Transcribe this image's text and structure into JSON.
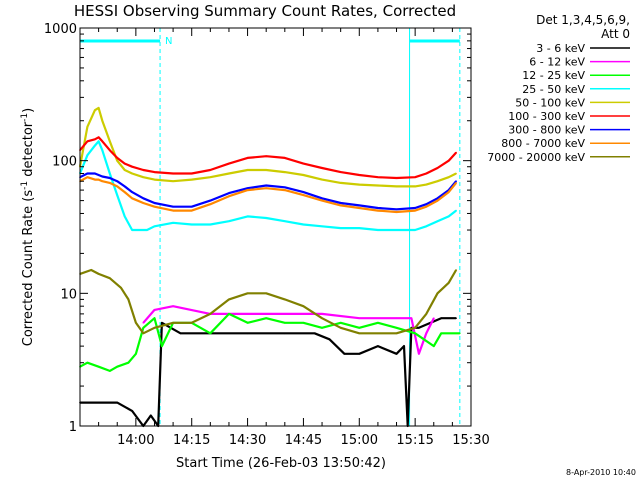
{
  "chart_data": {
    "type": "line",
    "title": "HESSI Observing Summary Count Rates, Corrected",
    "xlabel": "Start Time (26-Feb-03 13:50:42)",
    "ylabel_main": "Corrected Count Rate (s",
    "ylabel_sup1": "-1",
    "ylabel_mid": " detector",
    "ylabel_sup2": "-1",
    "ylabel_end": ")",
    "yscale": "log",
    "ylim": [
      1,
      1000
    ],
    "xlim_minutes": [
      -5,
      100
    ],
    "y_ticks": [
      {
        "value": 1,
        "label": "1"
      },
      {
        "value": 10,
        "label": "10"
      },
      {
        "value": 100,
        "label": "100"
      },
      {
        "value": 1000,
        "label": "1000"
      }
    ],
    "x_ticks": [
      {
        "minute": 10,
        "label": "14:00"
      },
      {
        "minute": 25,
        "label": "14:15"
      },
      {
        "minute": 40,
        "label": "14:30"
      },
      {
        "minute": 55,
        "label": "14:45"
      },
      {
        "minute": 70,
        "label": "15:00"
      },
      {
        "minute": 85,
        "label": "15:15"
      },
      {
        "minute": 100,
        "label": "15:30"
      }
    ],
    "legend_header": [
      "Det 1,3,4,5,6,9,",
      "Att 0"
    ],
    "legend_position": "right",
    "markers": {
      "night_start": 16.5,
      "night_end": 83.5,
      "day_end": 97.0,
      "night_label": "N",
      "color": "#00ffff"
    },
    "series": [
      {
        "name": "3 - 6 keV",
        "color": "#000000",
        "points": [
          [
            -5,
            1.5
          ],
          [
            5,
            1.5
          ],
          [
            9,
            1.3
          ],
          [
            12,
            1.0
          ],
          [
            14,
            1.2
          ],
          [
            16,
            1.0
          ],
          [
            17,
            6
          ],
          [
            22,
            5
          ],
          [
            30,
            5
          ],
          [
            40,
            5
          ],
          [
            50,
            5
          ],
          [
            58,
            5
          ],
          [
            62,
            4.5
          ],
          [
            66,
            3.5
          ],
          [
            70,
            3.5
          ],
          [
            75,
            4
          ],
          [
            80,
            3.5
          ],
          [
            82,
            4
          ],
          [
            83,
            1.0
          ],
          [
            84,
            5.5
          ],
          [
            86,
            5.5
          ],
          [
            92,
            6.5
          ],
          [
            96,
            6.5
          ]
        ]
      },
      {
        "name": "6 - 12 keV",
        "color": "#ff00ff",
        "points": [
          [
            12,
            6
          ],
          [
            15,
            7.5
          ],
          [
            20,
            8
          ],
          [
            30,
            7
          ],
          [
            40,
            7
          ],
          [
            50,
            7
          ],
          [
            60,
            7
          ],
          [
            70,
            6.5
          ],
          [
            80,
            6.5
          ],
          [
            84,
            6.5
          ],
          [
            86,
            3.5
          ],
          [
            88,
            5
          ],
          [
            90,
            6.5
          ]
        ]
      },
      {
        "name": "12 - 25 keV",
        "color": "#00ff00",
        "points": [
          [
            -5,
            2.8
          ],
          [
            -3,
            3.0
          ],
          [
            0,
            2.8
          ],
          [
            3,
            2.6
          ],
          [
            5,
            2.8
          ],
          [
            8,
            3.0
          ],
          [
            10,
            3.5
          ],
          [
            12,
            5.5
          ],
          [
            15,
            6.5
          ],
          [
            17,
            4
          ],
          [
            20,
            6
          ],
          [
            25,
            6
          ],
          [
            30,
            5
          ],
          [
            35,
            7
          ],
          [
            40,
            6
          ],
          [
            45,
            6.5
          ],
          [
            50,
            6
          ],
          [
            55,
            6
          ],
          [
            60,
            5.5
          ],
          [
            65,
            6
          ],
          [
            70,
            5.5
          ],
          [
            75,
            6
          ],
          [
            80,
            5.5
          ],
          [
            85,
            5
          ],
          [
            90,
            4
          ],
          [
            92,
            5
          ],
          [
            97,
            5
          ]
        ]
      },
      {
        "name": "25 - 50 keV",
        "color": "#00ffff",
        "points": [
          [
            -5,
            80
          ],
          [
            -3,
            110
          ],
          [
            -1,
            130
          ],
          [
            0,
            140
          ],
          [
            1,
            120
          ],
          [
            3,
            80
          ],
          [
            5,
            55
          ],
          [
            7,
            38
          ],
          [
            9,
            30
          ],
          [
            11,
            30
          ],
          [
            13,
            30
          ],
          [
            15,
            32
          ],
          [
            20,
            34
          ],
          [
            25,
            33
          ],
          [
            30,
            33
          ],
          [
            35,
            35
          ],
          [
            40,
            38
          ],
          [
            45,
            37
          ],
          [
            50,
            35
          ],
          [
            55,
            33
          ],
          [
            60,
            32
          ],
          [
            65,
            31
          ],
          [
            70,
            31
          ],
          [
            75,
            30
          ],
          [
            80,
            30
          ],
          [
            85,
            30
          ],
          [
            88,
            32
          ],
          [
            91,
            35
          ],
          [
            94,
            38
          ],
          [
            96,
            42
          ]
        ]
      },
      {
        "name": "50 - 100 keV",
        "color": "#cccc00",
        "points": [
          [
            -5,
            90
          ],
          [
            -3,
            180
          ],
          [
            -1,
            240
          ],
          [
            0,
            250
          ],
          [
            1,
            200
          ],
          [
            3,
            140
          ],
          [
            5,
            100
          ],
          [
            7,
            85
          ],
          [
            9,
            80
          ],
          [
            12,
            75
          ],
          [
            15,
            72
          ],
          [
            20,
            70
          ],
          [
            25,
            72
          ],
          [
            30,
            75
          ],
          [
            35,
            80
          ],
          [
            40,
            85
          ],
          [
            45,
            85
          ],
          [
            50,
            82
          ],
          [
            55,
            78
          ],
          [
            60,
            72
          ],
          [
            65,
            68
          ],
          [
            70,
            66
          ],
          [
            75,
            65
          ],
          [
            80,
            64
          ],
          [
            85,
            64
          ],
          [
            88,
            66
          ],
          [
            91,
            70
          ],
          [
            94,
            75
          ],
          [
            96,
            80
          ]
        ]
      },
      {
        "name": "100 - 300 keV",
        "color": "#ff0000",
        "points": [
          [
            -5,
            120
          ],
          [
            -3,
            140
          ],
          [
            -1,
            145
          ],
          [
            0,
            150
          ],
          [
            1,
            140
          ],
          [
            3,
            120
          ],
          [
            5,
            105
          ],
          [
            7,
            95
          ],
          [
            9,
            90
          ],
          [
            12,
            85
          ],
          [
            15,
            82
          ],
          [
            20,
            80
          ],
          [
            25,
            80
          ],
          [
            30,
            85
          ],
          [
            35,
            95
          ],
          [
            40,
            105
          ],
          [
            45,
            108
          ],
          [
            50,
            105
          ],
          [
            55,
            95
          ],
          [
            60,
            88
          ],
          [
            65,
            82
          ],
          [
            70,
            78
          ],
          [
            75,
            75
          ],
          [
            80,
            74
          ],
          [
            85,
            75
          ],
          [
            88,
            80
          ],
          [
            91,
            88
          ],
          [
            94,
            100
          ],
          [
            96,
            115
          ]
        ]
      },
      {
        "name": "300 - 800 keV",
        "color": "#0000ff",
        "points": [
          [
            -5,
            75
          ],
          [
            -3,
            80
          ],
          [
            -1,
            80
          ],
          [
            0,
            78
          ],
          [
            1,
            76
          ],
          [
            3,
            74
          ],
          [
            5,
            70
          ],
          [
            7,
            64
          ],
          [
            9,
            58
          ],
          [
            12,
            52
          ],
          [
            15,
            48
          ],
          [
            20,
            45
          ],
          [
            25,
            45
          ],
          [
            30,
            50
          ],
          [
            35,
            57
          ],
          [
            40,
            62
          ],
          [
            45,
            65
          ],
          [
            50,
            63
          ],
          [
            55,
            58
          ],
          [
            60,
            52
          ],
          [
            65,
            48
          ],
          [
            70,
            46
          ],
          [
            75,
            44
          ],
          [
            80,
            43
          ],
          [
            85,
            44
          ],
          [
            88,
            47
          ],
          [
            91,
            52
          ],
          [
            94,
            60
          ],
          [
            96,
            70
          ]
        ]
      },
      {
        "name": "800 - 7000 keV",
        "color": "#ff8800",
        "points": [
          [
            -5,
            70
          ],
          [
            -3,
            75
          ],
          [
            -1,
            72
          ],
          [
            0,
            72
          ],
          [
            1,
            70
          ],
          [
            3,
            68
          ],
          [
            5,
            64
          ],
          [
            7,
            58
          ],
          [
            9,
            52
          ],
          [
            12,
            48
          ],
          [
            15,
            45
          ],
          [
            20,
            42
          ],
          [
            25,
            42
          ],
          [
            30,
            47
          ],
          [
            35,
            54
          ],
          [
            40,
            60
          ],
          [
            45,
            62
          ],
          [
            50,
            60
          ],
          [
            55,
            55
          ],
          [
            60,
            50
          ],
          [
            65,
            46
          ],
          [
            70,
            44
          ],
          [
            75,
            42
          ],
          [
            80,
            41
          ],
          [
            85,
            42
          ],
          [
            88,
            45
          ],
          [
            91,
            50
          ],
          [
            94,
            58
          ],
          [
            96,
            68
          ]
        ]
      },
      {
        "name": "7000 - 20000 keV",
        "color": "#808000",
        "points": [
          [
            -5,
            14
          ],
          [
            -2,
            15
          ],
          [
            0,
            14
          ],
          [
            3,
            13
          ],
          [
            6,
            11
          ],
          [
            8,
            9
          ],
          [
            10,
            6
          ],
          [
            12,
            5
          ],
          [
            15,
            5.5
          ],
          [
            20,
            6
          ],
          [
            25,
            6
          ],
          [
            30,
            7
          ],
          [
            35,
            9
          ],
          [
            40,
            10
          ],
          [
            45,
            10
          ],
          [
            50,
            9
          ],
          [
            55,
            8
          ],
          [
            60,
            6.5
          ],
          [
            65,
            5.5
          ],
          [
            70,
            5
          ],
          [
            75,
            5
          ],
          [
            80,
            5
          ],
          [
            85,
            5.5
          ],
          [
            88,
            7
          ],
          [
            91,
            10
          ],
          [
            94,
            12
          ],
          [
            96,
            15
          ]
        ]
      }
    ]
  },
  "footer_date": "8-Apr-2010 10:40"
}
